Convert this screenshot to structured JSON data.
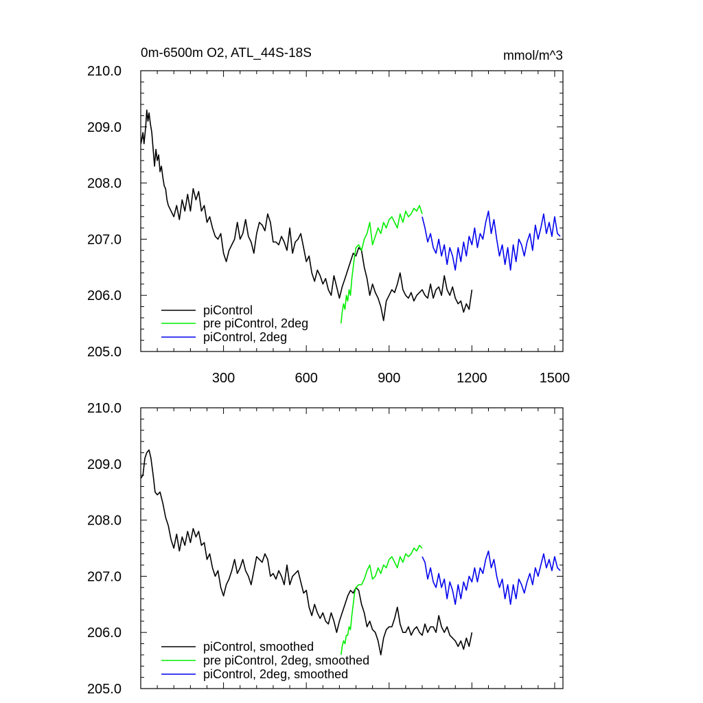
{
  "chart_data": [
    {
      "type": "line",
      "title": "0m-6500m O2, ATL_44S-18S",
      "unit_label": "mmol/m^3",
      "xlim": [
        0,
        1530
      ],
      "ylim": [
        205.0,
        210.0
      ],
      "xticks": [
        300,
        600,
        900,
        1200,
        1500
      ],
      "xtick_labels": [
        "300",
        "600",
        "900",
        "1200",
        "1500"
      ],
      "yticks": [
        205,
        206,
        207,
        208,
        209,
        210
      ],
      "ytick_labels": [
        "205.0",
        "206.0",
        "207.0",
        "208.0",
        "209.0",
        "210.0"
      ],
      "grid": false,
      "legend_position": "bottom-left",
      "series": [
        {
          "name": "piControl",
          "color": "#000000",
          "x": [
            1,
            8,
            12,
            18,
            22,
            26,
            30,
            35,
            40,
            45,
            50,
            55,
            60,
            65,
            70,
            75,
            80,
            85,
            90,
            95,
            100,
            110,
            120,
            130,
            140,
            150,
            160,
            170,
            180,
            190,
            200,
            210,
            220,
            230,
            240,
            250,
            260,
            270,
            280,
            290,
            300,
            310,
            320,
            330,
            340,
            350,
            360,
            370,
            380,
            390,
            400,
            410,
            420,
            430,
            440,
            450,
            460,
            470,
            480,
            490,
            500,
            510,
            520,
            530,
            540,
            550,
            560,
            570,
            580,
            590,
            600,
            610,
            620,
            630,
            640,
            650,
            660,
            670,
            680,
            690,
            700,
            710,
            720,
            730,
            740,
            750,
            760,
            770,
            780,
            790,
            800,
            810,
            820,
            830,
            840,
            850,
            860,
            870,
            880,
            890,
            900,
            910,
            920,
            930,
            940,
            950,
            960,
            970,
            980,
            990,
            1000,
            1010,
            1020,
            1030,
            1040,
            1050,
            1060,
            1070,
            1080,
            1090,
            1100,
            1110,
            1120,
            1130,
            1140,
            1150,
            1160,
            1170,
            1180,
            1190,
            1200
          ],
          "y": [
            208.7,
            208.9,
            208.7,
            209.0,
            209.3,
            209.1,
            209.25,
            209.05,
            208.9,
            208.6,
            208.3,
            208.6,
            208.4,
            208.5,
            208.2,
            208.3,
            208.1,
            207.95,
            207.9,
            207.7,
            207.6,
            207.5,
            207.4,
            207.6,
            207.35,
            207.7,
            207.5,
            207.8,
            207.5,
            207.9,
            207.7,
            207.85,
            207.5,
            207.6,
            207.3,
            207.4,
            207.2,
            207.05,
            207.0,
            207.1,
            206.75,
            206.6,
            206.8,
            206.9,
            207.0,
            207.3,
            207.0,
            207.1,
            207.35,
            207.05,
            206.95,
            206.75,
            207.1,
            207.3,
            207.25,
            207.15,
            207.45,
            207.3,
            206.95,
            206.95,
            206.9,
            207.05,
            206.95,
            206.8,
            207.2,
            206.75,
            206.95,
            207.0,
            207.1,
            206.85,
            206.6,
            206.7,
            206.4,
            206.25,
            206.45,
            206.35,
            206.2,
            206.3,
            206.1,
            206.0,
            206.35,
            206.15,
            205.95,
            206.15,
            206.3,
            206.45,
            206.6,
            206.75,
            206.7,
            206.85,
            206.8,
            206.5,
            206.3,
            206.0,
            206.2,
            206.05,
            205.95,
            205.8,
            205.55,
            205.9,
            206.0,
            206.1,
            206.05,
            206.2,
            206.4,
            206.1,
            206.0,
            205.95,
            206.05,
            205.9,
            206.0,
            206.05,
            206.1,
            206.0,
            205.95,
            206.2,
            205.95,
            206.1,
            206.15,
            206.0,
            206.35,
            206.1,
            206.0,
            206.15,
            205.95,
            205.85,
            205.9,
            205.7,
            205.85,
            205.75,
            206.1
          ]
        },
        {
          "name": "pre piControl, 2deg",
          "color": "#00ee00",
          "x": [
            726,
            730,
            735,
            740,
            745,
            750,
            755,
            760,
            765,
            770,
            775,
            780,
            790,
            800,
            810,
            820,
            830,
            840,
            850,
            860,
            870,
            880,
            890,
            900,
            910,
            920,
            930,
            940,
            950,
            960,
            970,
            980,
            990,
            1000,
            1010,
            1020
          ],
          "y": [
            205.5,
            205.7,
            205.85,
            205.75,
            206.0,
            205.9,
            206.1,
            206.0,
            206.3,
            206.5,
            206.7,
            206.85,
            206.9,
            206.8,
            207.0,
            207.1,
            207.3,
            206.9,
            207.05,
            207.2,
            207.1,
            207.3,
            207.2,
            207.35,
            207.4,
            207.3,
            207.2,
            207.45,
            207.3,
            207.5,
            207.4,
            207.45,
            207.55,
            207.5,
            207.6,
            207.45
          ]
        },
        {
          "name": "piControl, 2deg",
          "color": "#0000ee",
          "x": [
            1020,
            1030,
            1040,
            1050,
            1060,
            1070,
            1080,
            1090,
            1100,
            1110,
            1120,
            1130,
            1140,
            1150,
            1160,
            1170,
            1180,
            1190,
            1200,
            1210,
            1220,
            1230,
            1240,
            1250,
            1260,
            1270,
            1280,
            1290,
            1300,
            1310,
            1320,
            1330,
            1340,
            1350,
            1360,
            1370,
            1380,
            1390,
            1400,
            1410,
            1420,
            1430,
            1440,
            1450,
            1460,
            1470,
            1480,
            1490,
            1500,
            1510,
            1520
          ],
          "y": [
            207.4,
            207.2,
            206.95,
            207.1,
            206.85,
            206.75,
            207.0,
            206.7,
            206.9,
            206.55,
            206.85,
            206.7,
            206.45,
            206.85,
            206.6,
            206.95,
            206.7,
            207.05,
            206.9,
            207.2,
            206.85,
            207.1,
            207.0,
            207.3,
            207.5,
            207.1,
            207.35,
            207.0,
            206.7,
            206.9,
            206.55,
            206.85,
            206.45,
            206.9,
            206.6,
            207.0,
            206.9,
            206.7,
            206.95,
            207.1,
            206.8,
            207.25,
            207.0,
            207.2,
            207.45,
            207.1,
            207.3,
            207.05,
            207.4,
            207.1,
            207.05
          ]
        }
      ]
    },
    {
      "type": "line",
      "xlim": [
        0,
        1530
      ],
      "ylim": [
        205.0,
        210.0
      ],
      "xticks": [
        300,
        600,
        900,
        1200,
        1500
      ],
      "yticks": [
        205,
        206,
        207,
        208,
        209,
        210
      ],
      "ytick_labels": [
        "205.0",
        "206.0",
        "207.0",
        "208.0",
        "209.0",
        "210.0"
      ],
      "grid": false,
      "legend_position": "bottom-left",
      "series": [
        {
          "name": "piControl, smoothed",
          "color": "#000000",
          "x": [
            1,
            8,
            15,
            22,
            30,
            37,
            45,
            52,
            60,
            70,
            80,
            90,
            100,
            110,
            120,
            130,
            140,
            150,
            160,
            170,
            180,
            190,
            200,
            210,
            220,
            230,
            240,
            250,
            260,
            270,
            280,
            290,
            300,
            310,
            320,
            330,
            340,
            350,
            360,
            370,
            380,
            390,
            400,
            410,
            420,
            430,
            440,
            450,
            460,
            470,
            480,
            490,
            500,
            510,
            520,
            530,
            540,
            550,
            560,
            570,
            580,
            590,
            600,
            610,
            620,
            630,
            640,
            650,
            660,
            670,
            680,
            690,
            700,
            710,
            720,
            730,
            740,
            750,
            760,
            770,
            780,
            790,
            800,
            810,
            820,
            830,
            840,
            850,
            860,
            870,
            880,
            890,
            900,
            910,
            920,
            930,
            940,
            950,
            960,
            970,
            980,
            990,
            1000,
            1010,
            1020,
            1030,
            1040,
            1050,
            1060,
            1070,
            1080,
            1090,
            1100,
            1110,
            1120,
            1130,
            1140,
            1150,
            1160,
            1170,
            1180,
            1190,
            1200
          ],
          "y": [
            208.75,
            208.8,
            209.1,
            209.2,
            209.25,
            209.1,
            208.8,
            208.5,
            208.45,
            208.5,
            208.3,
            208.05,
            207.9,
            207.65,
            207.5,
            207.75,
            207.45,
            207.7,
            207.55,
            207.8,
            207.6,
            207.85,
            207.7,
            207.8,
            207.55,
            207.6,
            207.3,
            207.4,
            207.15,
            207.0,
            207.1,
            206.8,
            206.65,
            206.85,
            206.95,
            207.1,
            207.3,
            207.05,
            207.15,
            207.3,
            207.1,
            207.0,
            206.85,
            207.1,
            207.35,
            207.3,
            207.25,
            207.4,
            207.3,
            207.0,
            207.05,
            206.95,
            207.1,
            207.0,
            206.85,
            207.2,
            206.85,
            207.0,
            207.05,
            207.1,
            206.9,
            206.7,
            206.75,
            206.45,
            206.3,
            206.5,
            206.35,
            206.25,
            206.35,
            206.2,
            206.15,
            206.35,
            206.2,
            206.0,
            206.2,
            206.35,
            206.5,
            206.65,
            206.75,
            206.7,
            206.8,
            206.75,
            206.5,
            206.35,
            206.1,
            206.2,
            206.05,
            206.0,
            205.85,
            205.6,
            205.9,
            206.05,
            206.1,
            206.1,
            206.25,
            206.45,
            206.15,
            206.0,
            206.0,
            206.1,
            205.95,
            206.05,
            206.1,
            206.0,
            205.95,
            206.15,
            206.0,
            206.1,
            206.1,
            206.0,
            206.3,
            206.1,
            206.0,
            206.1,
            205.95,
            205.9,
            205.85,
            205.75,
            205.85,
            205.7,
            205.9,
            205.75,
            206.0
          ]
        },
        {
          "name": "pre piControl, 2deg, smoothed",
          "color": "#00ee00",
          "x": [
            726,
            730,
            735,
            740,
            745,
            750,
            755,
            760,
            765,
            770,
            775,
            780,
            790,
            800,
            810,
            820,
            830,
            840,
            850,
            860,
            870,
            880,
            890,
            900,
            910,
            920,
            930,
            940,
            950,
            960,
            970,
            980,
            990,
            1000,
            1010,
            1020
          ],
          "y": [
            205.6,
            205.75,
            205.85,
            205.8,
            205.95,
            205.95,
            206.1,
            206.05,
            206.3,
            206.5,
            206.7,
            206.8,
            206.85,
            206.85,
            206.95,
            207.1,
            207.2,
            206.95,
            207.0,
            207.15,
            207.05,
            207.2,
            207.15,
            207.3,
            207.35,
            207.25,
            207.15,
            207.35,
            207.25,
            207.4,
            207.35,
            207.4,
            207.5,
            207.45,
            207.55,
            207.5
          ]
        },
        {
          "name": "piControl, 2deg, smoothed",
          "color": "#0000ee",
          "x": [
            1020,
            1030,
            1040,
            1050,
            1060,
            1070,
            1080,
            1090,
            1100,
            1110,
            1120,
            1130,
            1140,
            1150,
            1160,
            1170,
            1180,
            1190,
            1200,
            1210,
            1220,
            1230,
            1240,
            1250,
            1260,
            1270,
            1280,
            1290,
            1300,
            1310,
            1320,
            1330,
            1340,
            1350,
            1360,
            1370,
            1380,
            1390,
            1400,
            1410,
            1420,
            1430,
            1440,
            1450,
            1460,
            1470,
            1480,
            1490,
            1500,
            1510,
            1520
          ],
          "y": [
            207.35,
            207.25,
            206.95,
            207.15,
            206.9,
            206.8,
            207.05,
            206.8,
            206.95,
            206.6,
            206.9,
            206.75,
            206.5,
            206.85,
            206.6,
            206.9,
            206.75,
            207.0,
            206.9,
            207.15,
            206.9,
            207.15,
            207.05,
            207.3,
            207.45,
            207.15,
            207.3,
            207.0,
            206.8,
            206.95,
            206.6,
            206.85,
            206.5,
            206.85,
            206.6,
            206.95,
            206.85,
            206.7,
            206.9,
            207.05,
            206.85,
            207.15,
            207.0,
            207.2,
            207.4,
            207.15,
            207.3,
            207.1,
            207.35,
            207.15,
            207.1
          ]
        }
      ]
    }
  ]
}
